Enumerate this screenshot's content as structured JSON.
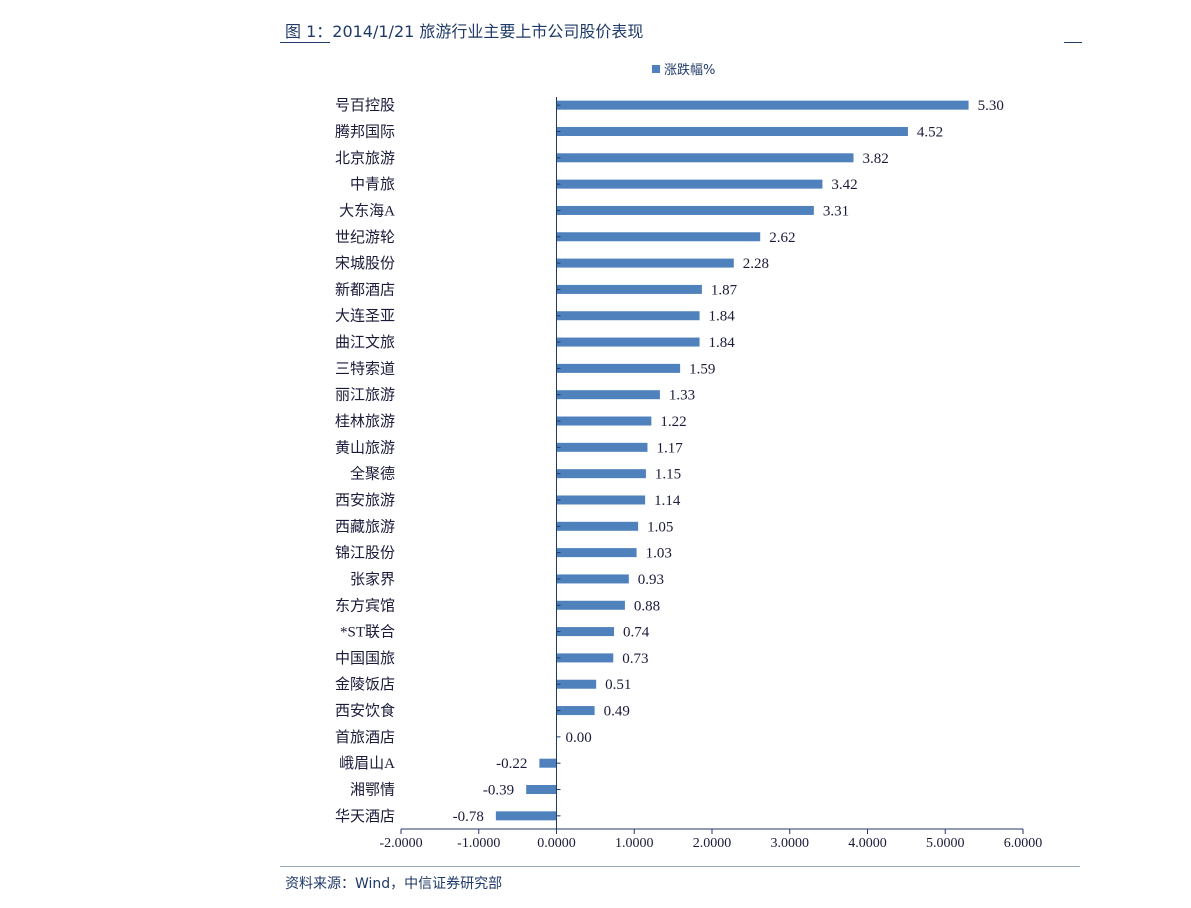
{
  "figure_title": "图 1：2014/1/21 旅游行业主要上市公司股价表现",
  "source_note": "资料来源：Wind，中信证券研究部",
  "colors": {
    "bar": "#4f81bd",
    "axis": "#1f3a68",
    "text": "#1a1a3a"
  },
  "chart_data": {
    "type": "bar",
    "orientation": "horizontal",
    "title": "",
    "xlabel": "",
    "ylabel": "",
    "legend_position": "top-center",
    "grid": false,
    "xlim": [
      -2,
      6
    ],
    "x_ticks": [
      "-2.0000",
      "-1.0000",
      "0.0000",
      "1.0000",
      "2.0000",
      "3.0000",
      "4.0000",
      "5.0000",
      "6.0000"
    ],
    "categories": [
      "号百控股",
      "腾邦国际",
      "北京旅游",
      "中青旅",
      "大东海A",
      "世纪游轮",
      "宋城股份",
      "新都酒店",
      "大连圣亚",
      "曲江文旅",
      "三特索道",
      "丽江旅游",
      "桂林旅游",
      "黄山旅游",
      "全聚德",
      "西安旅游",
      "西藏旅游",
      "锦江股份",
      "张家界",
      "东方宾馆",
      "*ST联合",
      "中国国旅",
      "金陵饭店",
      "西安饮食",
      "首旅酒店",
      "峨眉山A",
      "湘鄂情",
      "华天酒店"
    ],
    "series": [
      {
        "name": "涨跌幅%",
        "values": [
          5.3,
          4.52,
          3.82,
          3.42,
          3.31,
          2.62,
          2.28,
          1.87,
          1.84,
          1.84,
          1.59,
          1.33,
          1.22,
          1.17,
          1.15,
          1.14,
          1.05,
          1.03,
          0.93,
          0.88,
          0.74,
          0.73,
          0.51,
          0.49,
          0.0,
          -0.22,
          -0.39,
          -0.78
        ],
        "labels": [
          "5.30",
          "4.52",
          "3.82",
          "3.42",
          "3.31",
          "2.62",
          "2.28",
          "1.87",
          "1.84",
          "1.84",
          "1.59",
          "1.33",
          "1.22",
          "1.17",
          "1.15",
          "1.14",
          "1.05",
          "1.03",
          "0.93",
          "0.88",
          "0.74",
          "0.73",
          "0.51",
          "0.49",
          "0.00",
          "-0.22",
          "-0.39",
          "-0.78"
        ]
      }
    ]
  }
}
